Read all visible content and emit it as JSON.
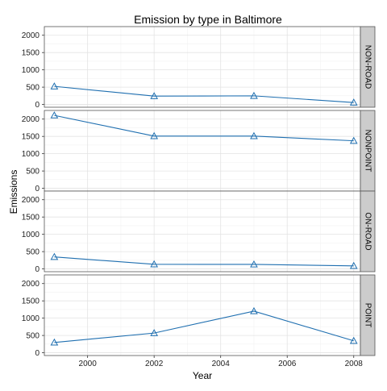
{
  "chart_data": {
    "type": "line",
    "title": "Emission by type in Baltimore",
    "xlabel": "Year",
    "ylabel": "Emissions",
    "x": [
      1999,
      2002,
      2005,
      2008
    ],
    "x_ticks": [
      2000,
      2002,
      2004,
      2006,
      2008
    ],
    "y_ticks": [
      0,
      500,
      1000,
      1500,
      2000
    ],
    "xlim": [
      1998.7,
      2008.2
    ],
    "ylim": [
      -80,
      2250
    ],
    "grid": true,
    "marker": "triangle-open",
    "line_color": "#1f6fb0",
    "panel_strip_color": "#cccccc",
    "panels": [
      {
        "label": "NON-ROAD",
        "values": [
          522.9,
          240.8,
          248.9,
          55.8
        ]
      },
      {
        "label": "NONPOINT",
        "values": [
          2107.6,
          1509.5,
          1509.5,
          1373.2
        ]
      },
      {
        "label": "ON-ROAD",
        "values": [
          346.8,
          134.3,
          130.4,
          88.3
        ]
      },
      {
        "label": "POINT",
        "values": [
          296.8,
          569.3,
          1202.5,
          344.98
        ]
      }
    ]
  }
}
